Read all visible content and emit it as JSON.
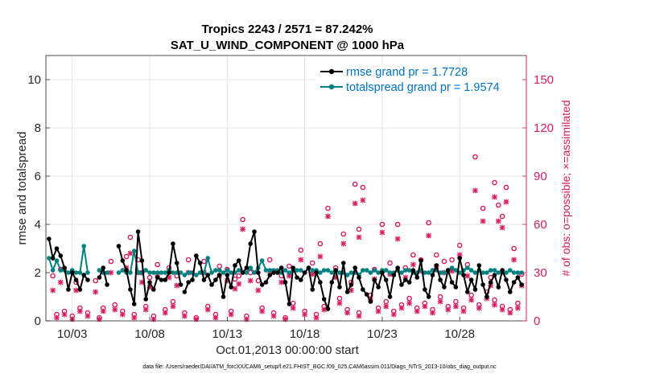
{
  "chart_data": {
    "type": "line",
    "title_line1": "Tropics 2243 / 2571 = 87.242%",
    "title_line2": "SAT_U_WIND_COMPONENT @ 1000 hPa",
    "ylabel": "rmse and totalspread",
    "ylabel_right": "# of obs: o=possible; ×=assimilated",
    "xlabel": "Oct.01,2013 00:00:00 start",
    "footer": "data file: /Users/raeder/DAI/ATM_forcXX/CAM6_setup/f.e21.FHIST_BGC.f09_025.CAM6assim.011/Diags_NTrS_2013-10/obs_diag_output.nc",
    "xlim": [
      1.3,
      32.3
    ],
    "ylim": [
      0,
      11
    ],
    "ylim_right": [
      0,
      165
    ],
    "x_tick_values": [
      3,
      8,
      13,
      18,
      23,
      28
    ],
    "x_tick_labels": [
      "10/03",
      "10/08",
      "10/13",
      "10/18",
      "10/23",
      "10/28"
    ],
    "y_tick_values": [
      0,
      2,
      4,
      6,
      8,
      10
    ],
    "y_tick_labels": [
      "0",
      "2",
      "4",
      "6",
      "8",
      "10"
    ],
    "y_right_tick_values": [
      0,
      30,
      60,
      90,
      120,
      150
    ],
    "y_right_tick_labels": [
      "0",
      "30",
      "60",
      "90",
      "120",
      "150"
    ],
    "legend": [
      {
        "label": "rmse grand pr = 1.7728",
        "color": "#000000"
      },
      {
        "label": "totalspread grand pr = 1.9574",
        "color": "#00807f"
      }
    ],
    "colors": {
      "rmse": "#000000",
      "spread": "#00807f",
      "obs": "#d81b60",
      "grid": "#dedede"
    },
    "series": [
      {
        "name": "rmse",
        "segments": [
          {
            "x": [
              1.5,
              1.75,
              2.0,
              2.25,
              2.5,
              2.75,
              3.0,
              3.25,
              3.5,
              3.75,
              4.0
            ],
            "y": [
              3.4,
              2.6,
              3.0,
              2.7,
              2.2,
              1.3,
              2.0,
              1.7,
              1.3,
              1.9,
              1.7
            ]
          },
          {
            "x": [
              4.75,
              5.0,
              5.25
            ],
            "y": [
              1.8,
              2.2,
              1.5
            ]
          },
          {
            "x": [
              6.0,
              6.25,
              6.5,
              6.75,
              7.0,
              7.25,
              7.5,
              7.75,
              8.0,
              8.25,
              8.5,
              8.75,
              9.0,
              9.25,
              9.5,
              9.75,
              10.0
            ],
            "y": [
              3.1,
              2.5,
              2.1,
              1.3,
              0.7,
              3.7,
              2.5,
              0.9,
              1.6,
              1.3,
              1.8,
              1.7,
              1.7,
              2.0,
              3.2,
              2.4,
              1.5
            ]
          },
          {
            "x": [
              10.25,
              10.5,
              10.75,
              11.0,
              11.25,
              11.5,
              11.75,
              12.0,
              12.25,
              12.5,
              12.75,
              13.0,
              13.25,
              13.5,
              13.75,
              14.0,
              14.25,
              14.5,
              14.75,
              15.0,
              15.25,
              15.5,
              15.75,
              16.0,
              16.25,
              16.5,
              16.75,
              17.0,
              17.25,
              17.5,
              17.75,
              18.0,
              18.25,
              18.5,
              18.75,
              19.0,
              19.25,
              19.5,
              19.75,
              20.0,
              20.25,
              20.5,
              20.75,
              21.0,
              21.25,
              21.5,
              21.75,
              22.0,
              22.25,
              22.5,
              22.75,
              23.0,
              23.25,
              23.5,
              23.75,
              24.0,
              24.25,
              24.5,
              24.75,
              25.0,
              25.25,
              25.5,
              25.75,
              26.0,
              26.25,
              26.5,
              26.75,
              27.0,
              27.25,
              27.5,
              27.75,
              28.0,
              28.25,
              28.5,
              28.75,
              29.0,
              29.25,
              29.5,
              29.75,
              30.0,
              30.25,
              30.5,
              30.75,
              31.0,
              31.25,
              31.5,
              31.75,
              32.0
            ],
            "y": [
              1.2,
              1.6,
              1.7,
              2.7,
              2.4,
              1.7,
              1.9,
              1.5,
              1.7,
              1.9,
              1.0,
              1.9,
              1.4,
              2.3,
              2.5,
              2.0,
              2.2,
              3.2,
              3.7,
              2.0,
              1.5,
              1.6,
              1.9,
              2.0,
              2.0,
              2.2,
              1.6,
              0.7,
              2.2,
              1.8,
              1.7,
              2.0,
              2.2,
              1.3,
              2.0,
              1.6,
              0.9,
              0.5,
              1.6,
              2.1,
              1.4,
              2.4,
              1.2,
              1.5,
              2.2,
              1.8,
              1.3,
              1.1,
              0.8,
              1.7,
              1.4,
              2.0,
              1.7,
              1.0,
              1.9,
              2.2,
              1.5,
              1.7,
              1.6,
              2.1,
              1.8,
              2.5,
              1.3,
              1.0,
              1.9,
              2.3,
              1.7,
              1.4,
              2.1,
              1.6,
              1.4,
              2.6,
              1.9,
              1.2,
              1.7,
              1.3,
              2.3,
              1.5,
              1.0,
              1.6,
              1.9,
              1.4,
              2.1,
              1.7,
              1.2,
              1.6,
              1.8,
              1.5
            ]
          }
        ]
      },
      {
        "name": "totalspread",
        "segments": [
          {
            "x": [
              1.5,
              1.75,
              2.0,
              2.25,
              2.5,
              2.75,
              3.0,
              3.25,
              3.5,
              3.75,
              4.0
            ],
            "y": [
              2.6,
              2.1,
              2.5,
              2.1,
              2.1,
              2.0,
              2.1,
              2.0,
              2.0,
              3.1,
              2.0
            ]
          },
          {
            "x": [
              4.75,
              5.0,
              5.25
            ],
            "y": [
              2.1,
              2.0,
              2.0
            ]
          },
          {
            "x": [
              6.0,
              6.25,
              6.5,
              6.75,
              7.0,
              7.25,
              7.5,
              7.75,
              8.0,
              8.25,
              8.5,
              8.75,
              9.0,
              9.25,
              9.5,
              9.75,
              10.0
            ],
            "y": [
              2.0,
              2.1,
              2.0,
              2.0,
              2.9,
              2.0,
              2.0,
              2.1,
              2.0,
              2.0,
              2.0,
              2.0,
              2.0,
              2.1,
              2.0,
              2.0,
              2.0
            ]
          },
          {
            "x": [
              10.25,
              10.5,
              10.75,
              11.0,
              11.25,
              11.5,
              11.75,
              12.0,
              12.25,
              12.5,
              12.75,
              13.0,
              13.25,
              13.5,
              13.75,
              14.0,
              14.25,
              14.5,
              14.75,
              15.0,
              15.25,
              15.5,
              15.75,
              16.0,
              16.25,
              16.5,
              16.75,
              17.0,
              17.25,
              17.5,
              17.75,
              18.0,
              18.25,
              18.5,
              18.75,
              19.0,
              19.25,
              19.5,
              19.75,
              20.0,
              20.25,
              20.5,
              20.75,
              21.0,
              21.25,
              21.5,
              21.75,
              22.0,
              22.25,
              22.5,
              22.75,
              23.0,
              23.25,
              23.5,
              23.75,
              24.0,
              24.25,
              24.5,
              24.75,
              25.0,
              25.25,
              25.5,
              25.75,
              26.0,
              26.25,
              26.5,
              26.75,
              27.0,
              27.25,
              27.5,
              27.75,
              28.0,
              28.25,
              28.5,
              28.75,
              29.0,
              29.25,
              29.5,
              29.75,
              30.0,
              30.25,
              30.5,
              30.75,
              31.0,
              31.25,
              31.5,
              31.75,
              32.0
            ],
            "y": [
              1.9,
              2.0,
              2.0,
              1.9,
              2.0,
              2.0,
              2.6,
              2.0,
              2.1,
              2.1,
              2.0,
              2.1,
              2.0,
              2.0,
              2.1,
              2.0,
              2.0,
              2.2,
              2.0,
              2.2,
              2.5,
              2.1,
              2.1,
              2.1,
              2.1,
              2.0,
              2.1,
              2.0,
              2.1,
              2.1,
              2.1,
              2.0,
              2.2,
              2.1,
              2.1,
              2.0,
              2.1,
              2.1,
              2.0,
              2.1,
              2.0,
              2.0,
              1.9,
              2.0,
              2.0,
              1.9,
              2.1,
              2.1,
              2.0,
              2.1,
              2.0,
              2.1,
              2.1,
              2.0,
              2.0,
              2.1,
              2.0,
              2.1,
              2.1,
              2.0,
              2.0,
              2.1,
              2.0,
              2.0,
              2.1,
              2.1,
              2.0,
              2.0,
              2.1,
              2.2,
              2.1,
              2.0,
              2.1,
              2.2,
              2.1,
              2.0,
              2.1,
              2.0,
              2.0,
              2.1,
              2.1,
              2.0,
              2.0,
              2.0,
              2.1,
              2.0,
              2.0,
              2.0
            ]
          }
        ]
      },
      {
        "name": "obs_possible",
        "marker": "o",
        "x": [
          1.75,
          2.25,
          3.25,
          4.5,
          5.5,
          6.5,
          6.75,
          7.25,
          7.5,
          8.0,
          8.5,
          9.25,
          9.75,
          10.5,
          11.5,
          12.5,
          13.0,
          13.5,
          13.75,
          14.0,
          14.5,
          15.0,
          15.75,
          16.5,
          17.0,
          17.75,
          18.5,
          19.0,
          19.5,
          20.0,
          20.5,
          21.0,
          21.25,
          21.5,
          21.75,
          22.5,
          23.0,
          23.5,
          24.0,
          24.5,
          25.0,
          25.5,
          26.0,
          26.5,
          27.0,
          27.5,
          28.0,
          28.5,
          29.0,
          29.5,
          30.0,
          30.25,
          30.5,
          30.75,
          31.0,
          31.5,
          32.0
        ],
        "y": [
          28,
          32,
          24,
          25,
          37,
          40,
          52,
          38,
          30,
          27,
          35,
          33,
          28,
          38,
          37,
          34,
          32,
          26,
          28,
          63,
          30,
          25,
          38,
          28,
          34,
          44,
          36,
          48,
          70,
          33,
          54,
          24,
          85,
          57,
          83,
          32,
          60,
          36,
          60,
          33,
          41,
          38,
          61,
          41,
          37,
          38,
          47,
          35,
          102,
          70,
          27,
          86,
          72,
          65,
          83,
          45,
          29
        ]
      },
      {
        "name": "obs_assimilated",
        "marker": "x",
        "x": [
          1.75,
          2.25,
          3.25,
          4.5,
          5.5,
          6.5,
          6.75,
          7.25,
          7.5,
          8.0,
          8.5,
          9.25,
          9.75,
          10.5,
          11.5,
          12.5,
          13.0,
          13.5,
          13.75,
          14.0,
          14.5,
          15.0,
          15.75,
          16.5,
          17.0,
          17.75,
          18.5,
          19.0,
          19.5,
          20.0,
          20.5,
          21.0,
          21.25,
          21.5,
          21.75,
          22.5,
          23.0,
          23.5,
          24.0,
          24.5,
          25.0,
          25.5,
          26.0,
          26.5,
          27.0,
          27.5,
          28.0,
          28.5,
          29.0,
          29.5,
          30.0,
          30.25,
          30.5,
          30.75,
          31.0,
          31.5,
          32.0
        ],
        "y": [
          19,
          24,
          19,
          18,
          30,
          33,
          42,
          30,
          24,
          21,
          28,
          27,
          22,
          30,
          30,
          28,
          25,
          20,
          23,
          57,
          25,
          19,
          31,
          24,
          28,
          38,
          29,
          40,
          65,
          27,
          48,
          19,
          73,
          52,
          75,
          26,
          55,
          29,
          51,
          27,
          35,
          31,
          53,
          34,
          30,
          31,
          41,
          28,
          81,
          62,
          22,
          77,
          62,
          58,
          74,
          38,
          22
        ]
      },
      {
        "name": "obs_low_possible",
        "marker": "o",
        "x": [
          2.0,
          2.5,
          3.0,
          3.5,
          4.0,
          4.75,
          5.0,
          5.75,
          6.25,
          7.0,
          7.75,
          8.25,
          9.0,
          9.5,
          10.25,
          11.0,
          11.75,
          12.25,
          13.25,
          14.25,
          15.25,
          16.0,
          16.75,
          17.25,
          18.0,
          18.75,
          19.25,
          20.25,
          20.75,
          21.5,
          22.25,
          22.75,
          23.25,
          23.75,
          24.25,
          24.75,
          25.25,
          25.75,
          26.25,
          26.75,
          27.25,
          27.75,
          28.25,
          28.75,
          29.25,
          29.75,
          30.25,
          30.75,
          31.25,
          31.75
        ],
        "y": [
          4,
          6,
          3,
          8,
          5,
          2,
          8,
          10,
          6,
          4,
          9,
          3,
          7,
          12,
          5,
          2,
          9,
          4,
          6,
          3,
          8,
          5,
          2,
          11,
          6,
          4,
          9,
          14,
          7,
          5,
          16,
          8,
          12,
          6,
          10,
          14,
          8,
          11,
          7,
          15,
          9,
          12,
          8,
          16,
          10,
          18,
          13,
          9,
          7,
          11
        ]
      },
      {
        "name": "obs_low_assimilated",
        "marker": "x",
        "x": [
          2.0,
          2.5,
          3.0,
          3.5,
          4.0,
          4.75,
          5.0,
          5.75,
          6.25,
          7.0,
          7.75,
          8.25,
          9.0,
          9.5,
          10.25,
          11.0,
          11.75,
          12.25,
          13.25,
          14.25,
          15.25,
          16.0,
          16.75,
          17.25,
          18.0,
          18.75,
          19.25,
          20.25,
          20.75,
          21.5,
          22.25,
          22.75,
          23.25,
          23.75,
          24.25,
          24.75,
          25.25,
          25.75,
          26.25,
          26.75,
          27.25,
          27.75,
          28.25,
          28.75,
          29.25,
          29.75,
          30.25,
          30.75,
          31.25,
          31.75
        ],
        "y": [
          2,
          4,
          1,
          6,
          3,
          1,
          6,
          7,
          4,
          2,
          7,
          1,
          5,
          9,
          3,
          1,
          7,
          2,
          4,
          1,
          6,
          3,
          1,
          8,
          4,
          2,
          7,
          11,
          5,
          3,
          13,
          6,
          9,
          4,
          8,
          11,
          6,
          9,
          5,
          12,
          7,
          9,
          6,
          13,
          8,
          14,
          10,
          7,
          5,
          8
        ]
      }
    ]
  }
}
